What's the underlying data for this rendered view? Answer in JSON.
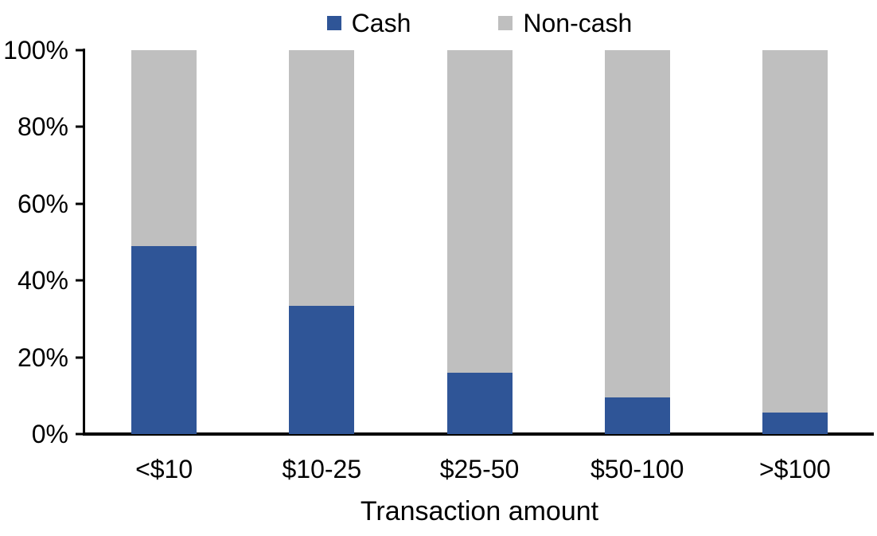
{
  "chart_data": {
    "type": "bar",
    "variant": "100-percent-stacked-column",
    "title": "",
    "xlabel": "Transaction amount",
    "ylabel": "",
    "categories": [
      "<$10",
      "$10-25",
      "$25-50",
      "$50-100",
      ">$100"
    ],
    "series": [
      {
        "name": "Cash",
        "color": "#2F5597",
        "values": [
          49,
          33.5,
          16,
          9.5,
          5.5
        ]
      },
      {
        "name": "Non-cash",
        "color": "#BFBFBF",
        "values": [
          51,
          66.5,
          84,
          90.5,
          94.5
        ]
      }
    ],
    "ylim": [
      0,
      100
    ],
    "ytick_values": [
      0,
      20,
      40,
      60,
      80,
      100
    ],
    "ytick_labels": [
      "0%",
      "20%",
      "40%",
      "60%",
      "80%",
      "100%"
    ],
    "legend_position": "top-center",
    "grid": false,
    "axis_color": "#000000",
    "text_color": "#000000",
    "background": "#FFFFFF"
  }
}
